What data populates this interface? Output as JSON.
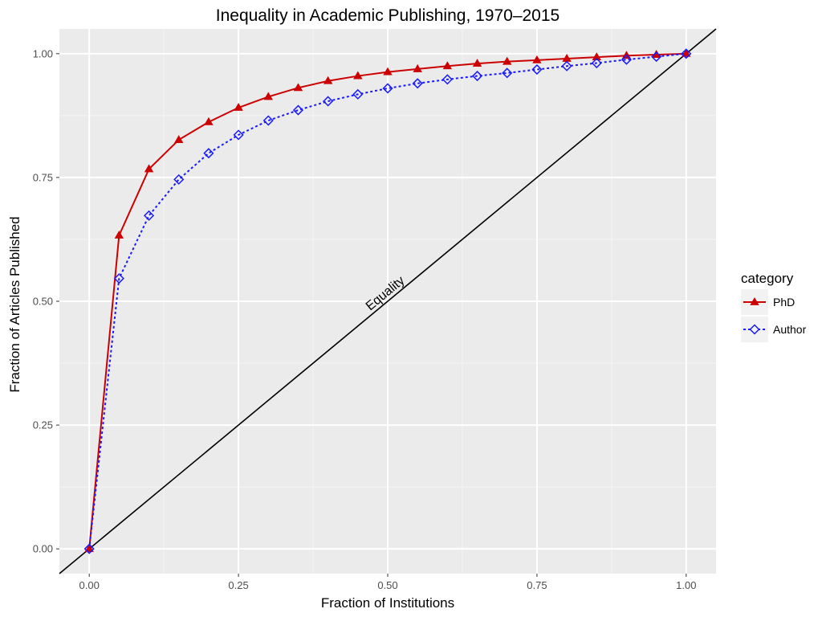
{
  "chart_data": {
    "type": "line",
    "title": "Inequality in Academic Publishing, 1970–2015",
    "xlabel": "Fraction of Institutions",
    "ylabel": "Fraction of Articles Published",
    "xlim": [
      -0.05,
      1.05
    ],
    "ylim": [
      -0.05,
      1.05
    ],
    "x_ticks": [
      0,
      0.25,
      0.5,
      0.75,
      1
    ],
    "x_tick_labels": [
      "0.00",
      "0.25",
      "0.50",
      "0.75",
      "1.00"
    ],
    "y_ticks": [
      0,
      0.25,
      0.5,
      0.75,
      1
    ],
    "y_tick_labels": [
      "0.00",
      "0.25",
      "0.50",
      "0.75",
      "1.00"
    ],
    "grid": true,
    "background": "#ebebeb",
    "legend": {
      "title": "category",
      "placement": "right"
    },
    "x": [
      0,
      0.05,
      0.1,
      0.15,
      0.2,
      0.25,
      0.3,
      0.35,
      0.4,
      0.45,
      0.5,
      0.55,
      0.6,
      0.65,
      0.7,
      0.75,
      0.8,
      0.85,
      0.9,
      0.95,
      1.0
    ],
    "series": [
      {
        "name": "PhD",
        "color": "#cc0000",
        "line": "solid",
        "marker": "triangle",
        "values": [
          0,
          0.633,
          0.767,
          0.826,
          0.862,
          0.891,
          0.913,
          0.931,
          0.945,
          0.955,
          0.963,
          0.969,
          0.975,
          0.98,
          0.984,
          0.987,
          0.99,
          0.993,
          0.996,
          0.998,
          1.0
        ]
      },
      {
        "name": "Author",
        "color": "#1a1aff",
        "line": "dotted",
        "marker": "diamond-open",
        "values": [
          0,
          0.546,
          0.673,
          0.746,
          0.799,
          0.836,
          0.865,
          0.886,
          0.904,
          0.918,
          0.93,
          0.94,
          0.948,
          0.955,
          0.961,
          0.968,
          0.975,
          0.981,
          0.988,
          0.994,
          1.0
        ]
      }
    ],
    "reference_line": {
      "label": "Equality",
      "slope": 1,
      "intercept": 0,
      "color": "#000000",
      "label_at": 0.5
    }
  }
}
